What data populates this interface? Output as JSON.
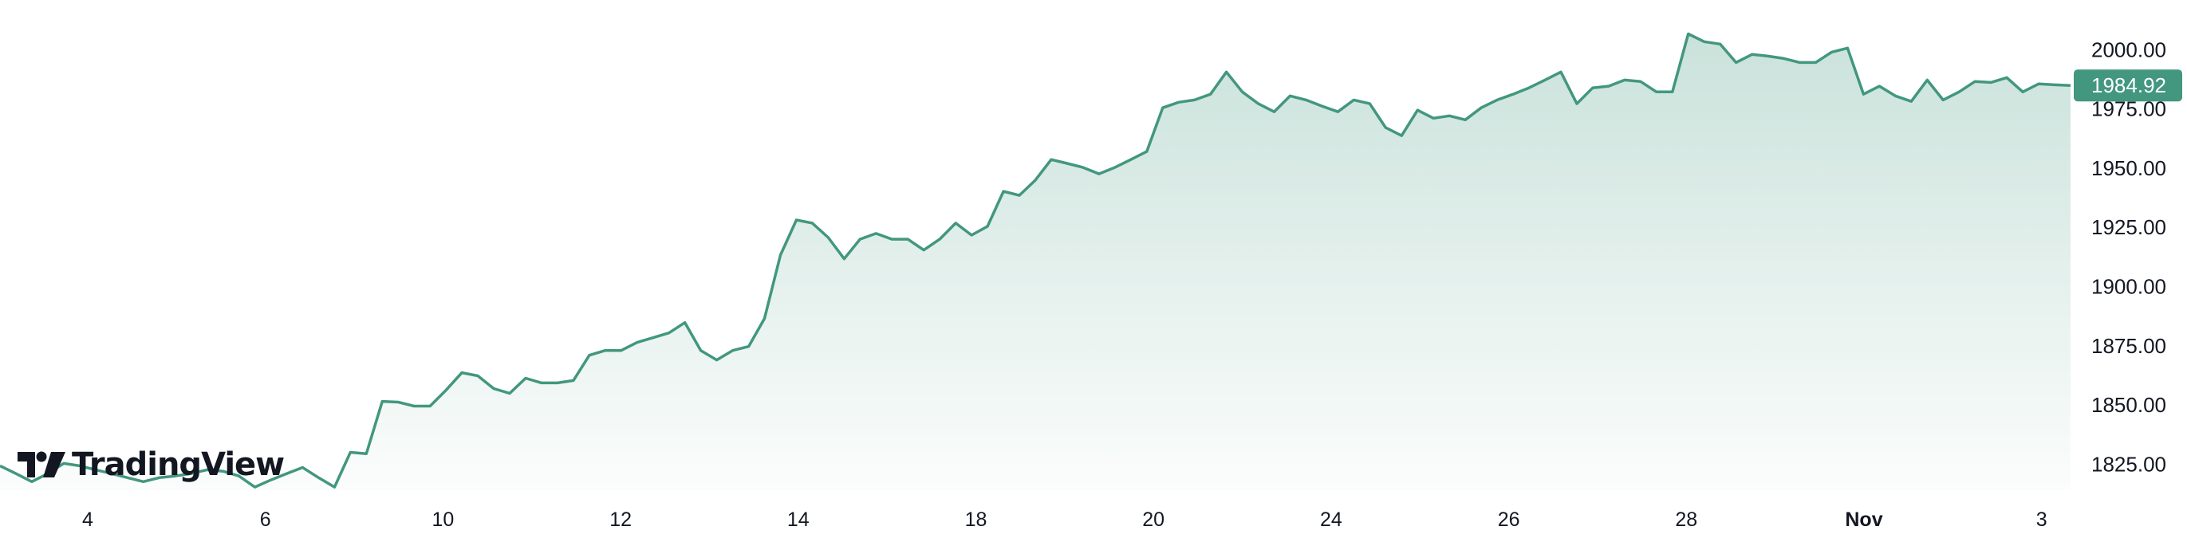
{
  "chart_data": {
    "type": "area",
    "title": "",
    "xlabel": "",
    "ylabel": "",
    "x_tick_labels": [
      "4",
      "6",
      "10",
      "12",
      "14",
      "18",
      "20",
      "24",
      "26",
      "28",
      "Nov",
      "3"
    ],
    "bold_x_ticks": [
      "Nov"
    ],
    "y_tick_labels": [
      "2000.00",
      "1975.00",
      "1950.00",
      "1925.00",
      "1900.00",
      "1875.00",
      "1850.00",
      "1825.00"
    ],
    "y_ticks": [
      2000,
      1975,
      1950,
      1925,
      1900,
      1875,
      1850,
      1825
    ],
    "ylim": [
      1814,
      2021
    ],
    "y_axis_side": "right",
    "grid": false,
    "legend": "none",
    "last_price": 1984.92,
    "last_price_label": "1984.92",
    "colors": {
      "line": "#42977e",
      "fill": "#42977e",
      "last_price_bg": "#42977e",
      "text": "#131722"
    },
    "values": [
      1824.3,
      1821,
      1817.6,
      1821,
      1825.3,
      1824.3,
      1822.6,
      1821,
      1819.3,
      1817.6,
      1819.3,
      1820,
      1821,
      1822.6,
      1822,
      1820,
      1815.3,
      1818.3,
      1821,
      1823.6,
      1819.3,
      1815.3,
      1830,
      1829.4,
      1851.5,
      1851.2,
      1849.5,
      1849.5,
      1856.2,
      1863.6,
      1862.3,
      1856.9,
      1854.9,
      1861.3,
      1859.3,
      1859.3,
      1860.3,
      1871,
      1873,
      1873,
      1876.4,
      1878.4,
      1880.4,
      1884.8,
      1873,
      1869,
      1873,
      1874.7,
      1886.5,
      1913.3,
      1928.1,
      1926.8,
      1920.7,
      1911.7,
      1920,
      1922.4,
      1920,
      1920,
      1915.4,
      1920,
      1926.8,
      1921.7,
      1925.4,
      1940.2,
      1938.5,
      1944.9,
      1953.6,
      1952,
      1950.3,
      1947.6,
      1950.3,
      1953.6,
      1957,
      1975.5,
      1977.8,
      1978.8,
      1981.2,
      1990.6,
      1982.2,
      1977.2,
      1973.8,
      1980.5,
      1978.8,
      1976.2,
      1973.8,
      1978.8,
      1977.2,
      1967.1,
      1963.7,
      1974.5,
      1971.1,
      1972.1,
      1970.4,
      1975.5,
      1978.8,
      1981.2,
      1983.9,
      1987.2,
      1990.6,
      1977.2,
      1983.9,
      1984.6,
      1987.2,
      1986.6,
      1982.2,
      1982.2,
      2006.7,
      2003.4,
      2002.4,
      1994.6,
      1998,
      1997.3,
      1996.3,
      1994.6,
      1994.6,
      1999,
      2000.7,
      1981.2,
      1984.6,
      1980.5,
      1978.2,
      1987.2,
      1978.8,
      1982.2,
      1986.6,
      1986.2,
      1988.2,
      1982.2,
      1985.6,
      1985.2,
      1984.92
    ]
  },
  "branding": {
    "logo_text": "TradingView"
  }
}
